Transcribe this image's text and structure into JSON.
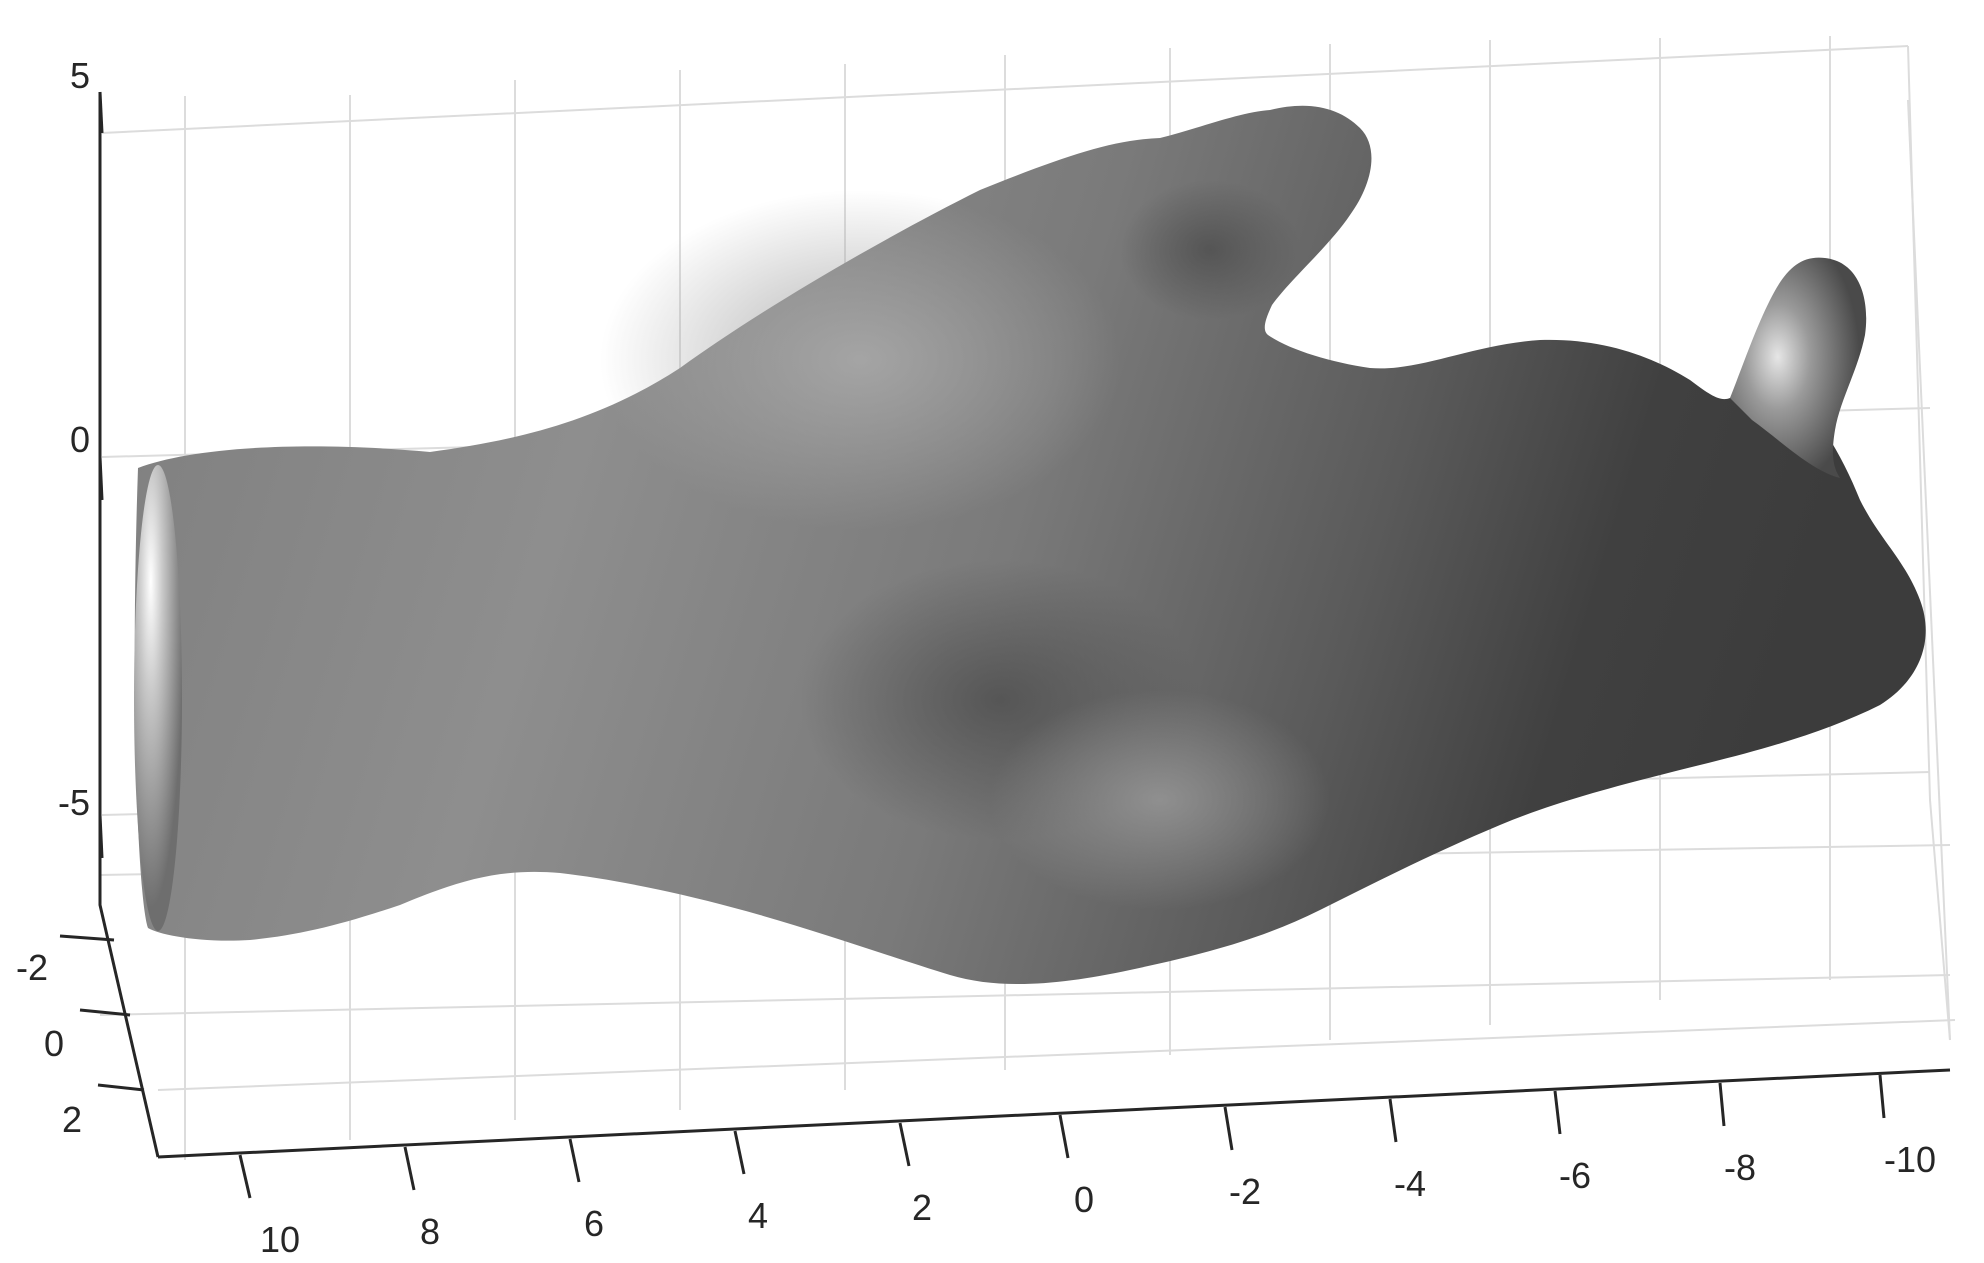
{
  "chart_data": {
    "type": "surface",
    "title": "",
    "xlabel": "",
    "ylabel": "",
    "zlabel": "",
    "xlim": [
      -11,
      11
    ],
    "ylim": [
      -3,
      3
    ],
    "zlim": [
      -7,
      5
    ],
    "grid": true,
    "surface_color": "#808080",
    "x_ticks": [
      {
        "value": 10,
        "label": "10"
      },
      {
        "value": 8,
        "label": "8"
      },
      {
        "value": 6,
        "label": "6"
      },
      {
        "value": 4,
        "label": "4"
      },
      {
        "value": 2,
        "label": "2"
      },
      {
        "value": 0,
        "label": "0"
      },
      {
        "value": -2,
        "label": "-2"
      },
      {
        "value": -4,
        "label": "-4"
      },
      {
        "value": -6,
        "label": "-6"
      },
      {
        "value": -8,
        "label": "-8"
      },
      {
        "value": -10,
        "label": "-10"
      }
    ],
    "y_ticks": [
      {
        "value": -2,
        "label": "-2"
      },
      {
        "value": 0,
        "label": "0"
      },
      {
        "value": 2,
        "label": "2"
      }
    ],
    "z_ticks": [
      {
        "value": 5,
        "label": "5"
      },
      {
        "value": 0,
        "label": "0"
      },
      {
        "value": -5,
        "label": "-5"
      }
    ]
  }
}
